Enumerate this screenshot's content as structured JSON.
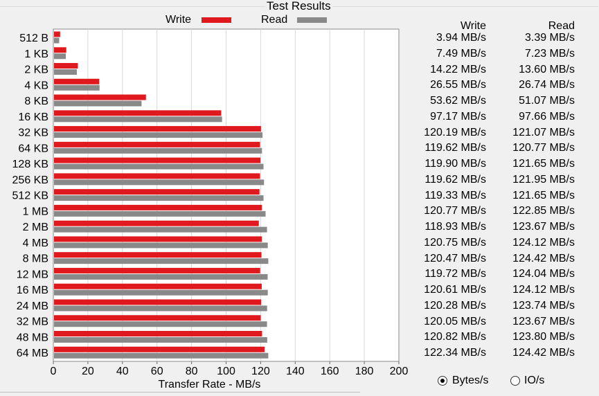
{
  "title": "Test Results",
  "legend": {
    "write": "Write",
    "read": "Read"
  },
  "colors": {
    "write": "#e0191f",
    "read": "#898989"
  },
  "table": {
    "write_header": "Write",
    "read_header": "Read",
    "write_values": [
      "3.94 MB/s",
      "7.49 MB/s",
      "14.22 MB/s",
      "26.55 MB/s",
      "53.62 MB/s",
      "97.17 MB/s",
      "120.19 MB/s",
      "119.62 MB/s",
      "119.90 MB/s",
      "119.62 MB/s",
      "119.33 MB/s",
      "120.77 MB/s",
      "118.93 MB/s",
      "120.75 MB/s",
      "120.47 MB/s",
      "119.72 MB/s",
      "120.61 MB/s",
      "120.28 MB/s",
      "120.05 MB/s",
      "120.82 MB/s",
      "122.34 MB/s"
    ],
    "read_values": [
      "3.39 MB/s",
      "7.23 MB/s",
      "13.60 MB/s",
      "26.74 MB/s",
      "51.07 MB/s",
      "97.66 MB/s",
      "121.07 MB/s",
      "120.77 MB/s",
      "121.65 MB/s",
      "121.95 MB/s",
      "121.65 MB/s",
      "122.85 MB/s",
      "123.67 MB/s",
      "124.12 MB/s",
      "124.42 MB/s",
      "124.04 MB/s",
      "124.12 MB/s",
      "123.74 MB/s",
      "123.67 MB/s",
      "123.80 MB/s",
      "124.42 MB/s"
    ]
  },
  "options": {
    "bytes_label": "Bytes/s",
    "io_label": "IO/s",
    "selected": "bytes"
  },
  "chart_data": {
    "type": "bar",
    "orientation": "horizontal",
    "categories": [
      "512 B",
      "1 KB",
      "2 KB",
      "4 KB",
      "8 KB",
      "16 KB",
      "32 KB",
      "64 KB",
      "128 KB",
      "256 KB",
      "512 KB",
      "1 MB",
      "2 MB",
      "4 MB",
      "8 MB",
      "12 MB",
      "16 MB",
      "24 MB",
      "32 MB",
      "48 MB",
      "64 MB"
    ],
    "series": [
      {
        "name": "Write",
        "values": [
          3.94,
          7.49,
          14.22,
          26.55,
          53.62,
          97.17,
          120.19,
          119.62,
          119.9,
          119.62,
          119.33,
          120.77,
          118.93,
          120.75,
          120.47,
          119.72,
          120.61,
          120.28,
          120.05,
          120.82,
          122.34
        ]
      },
      {
        "name": "Read",
        "values": [
          3.39,
          7.23,
          13.6,
          26.74,
          51.07,
          97.66,
          121.07,
          120.77,
          121.65,
          121.95,
          121.65,
          122.85,
          123.67,
          124.12,
          124.42,
          124.04,
          124.12,
          123.74,
          123.67,
          123.8,
          124.42
        ]
      }
    ],
    "xlabel": "Transfer Rate - MB/s",
    "xlim": [
      0,
      200
    ],
    "xticks": [
      0,
      20,
      40,
      60,
      80,
      100,
      120,
      140,
      160,
      180,
      200
    ],
    "grid": true,
    "legend_position": "top"
  }
}
